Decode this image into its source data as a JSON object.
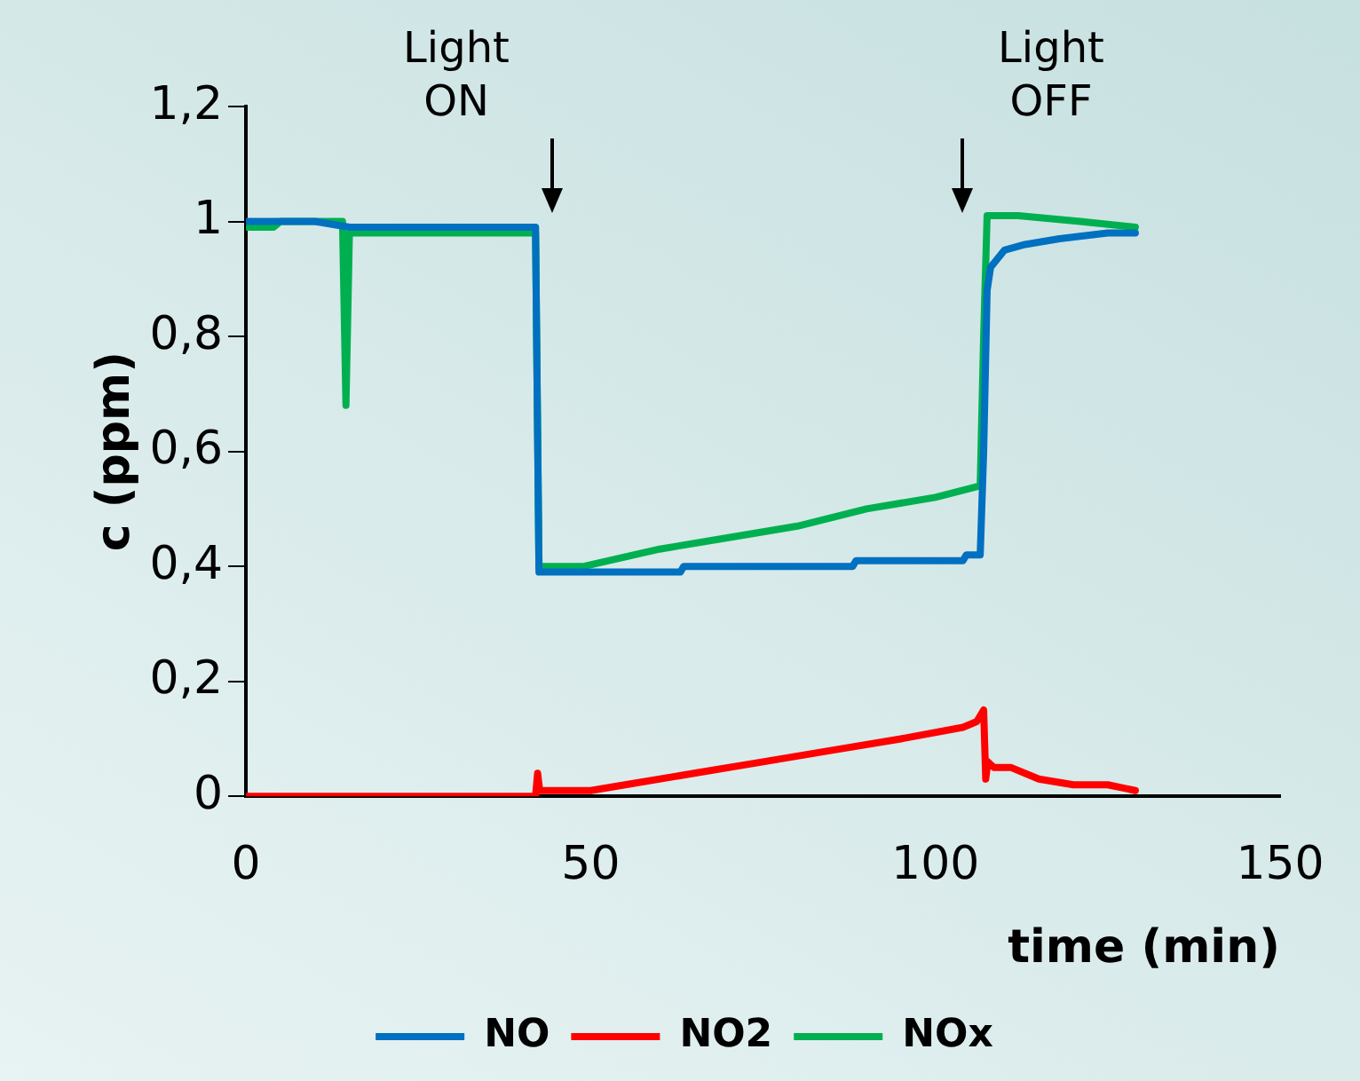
{
  "chart_data": {
    "type": "line",
    "xlabel": "time (min)",
    "ylabel": "c (ppm)",
    "xlim": [
      0,
      150
    ],
    "xticks": [
      0,
      50,
      100,
      150
    ],
    "ylim": [
      0,
      1.2
    ],
    "yticks": [
      0,
      {
        "value": 0.2,
        "label": "0,2"
      },
      {
        "value": 0.4,
        "label": "0,4"
      },
      {
        "value": 0.6,
        "label": "0,6"
      },
      {
        "value": 0.8,
        "label": "0,8"
      },
      1,
      {
        "value": 1.2,
        "label": "1,2"
      }
    ],
    "grid": false,
    "legend": "bottom",
    "marker": "none",
    "line_style": "solid",
    "annotations": [
      "Light ON",
      "Light OFF"
    ],
    "series": [
      {
        "name": "NO",
        "color": "#0070c0",
        "x": [
          0,
          5,
          10,
          15,
          20,
          42,
          42.5,
          63,
          63.5,
          88,
          88.5,
          104,
          104.5,
          106.5,
          107,
          107.5,
          108,
          110,
          113,
          118,
          125,
          129
        ],
        "values": [
          1,
          1,
          1,
          0.99,
          0.99,
          0.99,
          0.39,
          0.39,
          0.4,
          0.4,
          0.41,
          0.41,
          0.42,
          0.42,
          0.6,
          0.88,
          0.92,
          0.95,
          0.96,
          0.97,
          0.98,
          0.98
        ]
      },
      {
        "name": "NO2",
        "color": "#ff0000",
        "x": [
          0,
          42,
          42.3,
          42.6,
          50,
          55,
          65,
          75,
          85,
          95,
          104,
          106,
          107,
          107.3,
          107.6,
          108.5,
          111,
          115,
          120,
          125,
          129
        ],
        "values": [
          0,
          0,
          0.04,
          0.01,
          0.01,
          0.02,
          0.04,
          0.06,
          0.08,
          0.1,
          0.12,
          0.13,
          0.15,
          0.03,
          0.06,
          0.05,
          0.05,
          0.03,
          0.02,
          0.02,
          0.01
        ],
        "type": "line"
      },
      {
        "name": "NOx",
        "color": "#00b050",
        "x": [
          0,
          4,
          5,
          14,
          14.5,
          15,
          20,
          42,
          42.5,
          49,
          60,
          70,
          80,
          90,
          100,
          106.5,
          107,
          107.5,
          112,
          121,
          129
        ],
        "values": [
          0.99,
          0.99,
          1,
          1,
          0.68,
          0.98,
          0.98,
          0.98,
          0.4,
          0.4,
          0.43,
          0.45,
          0.47,
          0.5,
          0.52,
          0.54,
          0.8,
          1.01,
          1.01,
          1,
          0.99
        ]
      }
    ]
  }
}
